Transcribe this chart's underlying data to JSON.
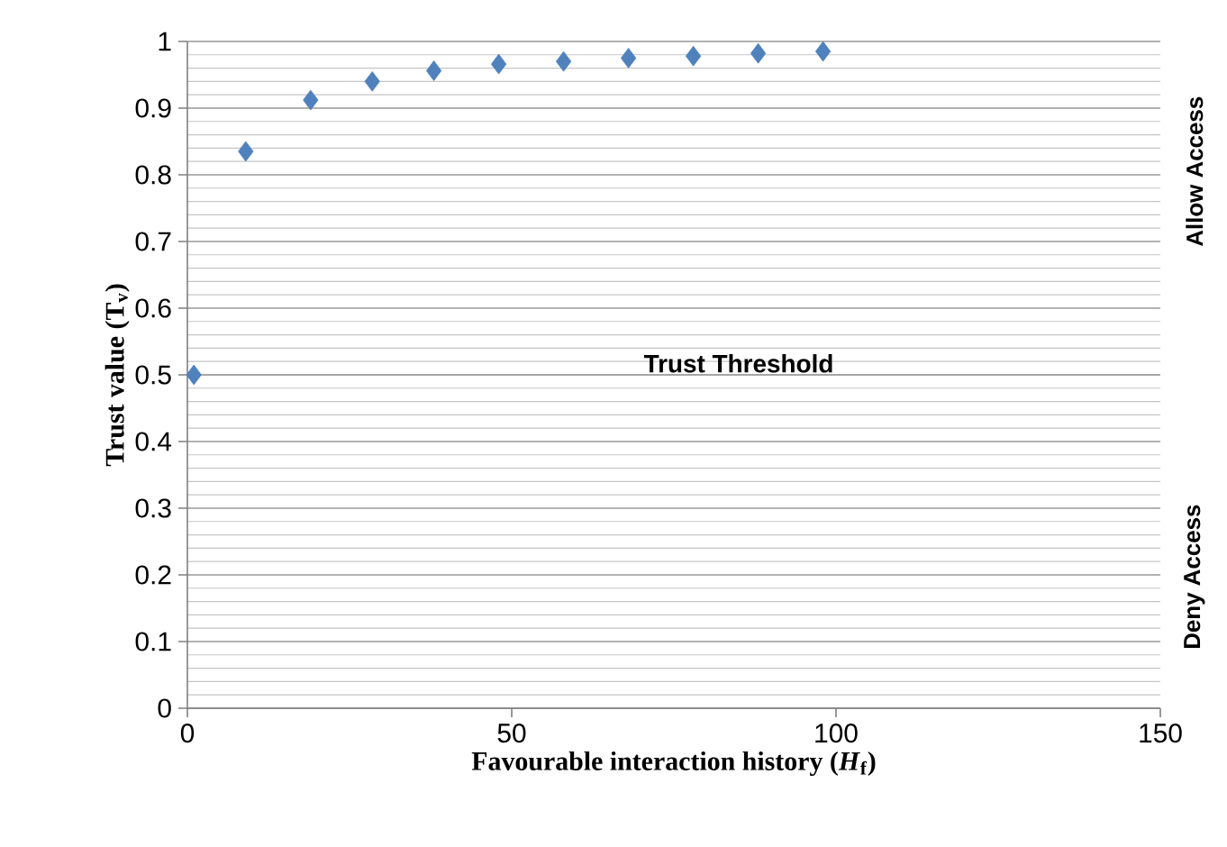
{
  "chart_data": {
    "type": "scatter",
    "xlabel": "Favourable interaction history (*H*$_{f}$)",
    "ylabel": "Trust  value (T$_{v}$)",
    "x": [
      1,
      9,
      19,
      28.5,
      38,
      48,
      58,
      68,
      78,
      88,
      98
    ],
    "series": [
      {
        "color": "#4f81bd",
        "values": [
          0.5,
          0.835,
          0.912,
          0.94,
          0.956,
          0.966,
          0.97,
          0.975,
          0.978,
          0.982,
          0.985
        ]
      }
    ],
    "xlim": [
      0,
      150
    ],
    "xticks": [
      0,
      50,
      100,
      150
    ],
    "ylim": [
      0,
      1
    ],
    "yticks": [
      0,
      0.1,
      0.2,
      0.3,
      0.4,
      0.5,
      0.6,
      0.7,
      0.8,
      0.9,
      1
    ],
    "ref_lines": [
      {
        "axis": "y",
        "value": 0.5,
        "label": "Trust Threshold",
        "color": "#a0a0a0"
      }
    ],
    "annotations": [
      "Allow Access",
      "Deny Access"
    ],
    "grid": "y",
    "marker": "diamond"
  }
}
